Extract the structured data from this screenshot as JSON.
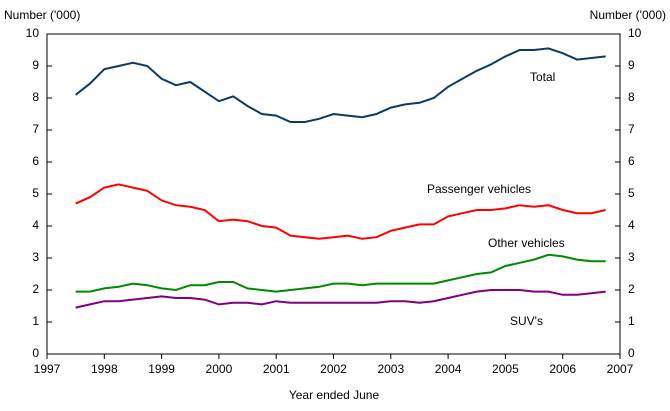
{
  "chart_data": {
    "type": "line",
    "ylabel": "Number ('000)",
    "y2label": "Number ('000)",
    "xlabel": "Year ended June",
    "x": [
      1997.5,
      1997.75,
      1998,
      1998.25,
      1998.5,
      1998.75,
      1999,
      1999.25,
      1999.5,
      1999.75,
      2000,
      2000.25,
      2000.5,
      2000.75,
      2001,
      2001.25,
      2001.5,
      2001.75,
      2002,
      2002.25,
      2002.5,
      2002.75,
      2003,
      2003.25,
      2003.5,
      2003.75,
      2004,
      2004.25,
      2004.5,
      2004.75,
      2005,
      2005.25,
      2005.5,
      2005.75,
      2006,
      2006.25,
      2006.5,
      2006.75
    ],
    "series": [
      {
        "name": "Total",
        "color": "#0b3a6a",
        "values": [
          8.1,
          8.45,
          8.9,
          9.0,
          9.1,
          9.0,
          8.6,
          8.4,
          8.5,
          8.2,
          7.9,
          8.05,
          7.75,
          7.5,
          7.45,
          7.25,
          7.25,
          7.35,
          7.5,
          7.45,
          7.4,
          7.5,
          7.7,
          7.8,
          7.85,
          8.0,
          8.35,
          8.6,
          8.85,
          9.05,
          9.3,
          9.5,
          9.5,
          9.55,
          9.4,
          9.2,
          9.25,
          9.3
        ]
      },
      {
        "name": "Passenger vehicles",
        "color": "#ff0000",
        "values": [
          4.7,
          4.9,
          5.2,
          5.3,
          5.2,
          5.1,
          4.8,
          4.65,
          4.6,
          4.5,
          4.15,
          4.2,
          4.15,
          4.0,
          3.95,
          3.7,
          3.65,
          3.6,
          3.65,
          3.7,
          3.6,
          3.65,
          3.85,
          3.95,
          4.05,
          4.05,
          4.3,
          4.4,
          4.5,
          4.5,
          4.55,
          4.65,
          4.6,
          4.65,
          4.5,
          4.4,
          4.4,
          4.5
        ]
      },
      {
        "name": "Other vehicles",
        "color": "#008a00",
        "values": [
          1.95,
          1.95,
          2.05,
          2.1,
          2.2,
          2.15,
          2.05,
          2.0,
          2.15,
          2.15,
          2.25,
          2.25,
          2.05,
          2.0,
          1.95,
          2.0,
          2.05,
          2.1,
          2.2,
          2.2,
          2.15,
          2.2,
          2.2,
          2.2,
          2.2,
          2.2,
          2.3,
          2.4,
          2.5,
          2.55,
          2.75,
          2.85,
          2.95,
          3.1,
          3.05,
          2.95,
          2.9,
          2.9
        ]
      },
      {
        "name": "SUV's",
        "color": "#800080",
        "values": [
          1.45,
          1.55,
          1.65,
          1.65,
          1.7,
          1.75,
          1.8,
          1.75,
          1.75,
          1.7,
          1.55,
          1.6,
          1.6,
          1.55,
          1.65,
          1.6,
          1.6,
          1.6,
          1.6,
          1.6,
          1.6,
          1.6,
          1.65,
          1.65,
          1.6,
          1.65,
          1.75,
          1.85,
          1.95,
          2.0,
          2.0,
          2.0,
          1.95,
          1.95,
          1.85,
          1.85,
          1.9,
          1.95
        ]
      }
    ],
    "xlim": [
      1997,
      2007
    ],
    "xticks": [
      1997,
      1998,
      1999,
      2000,
      2001,
      2002,
      2003,
      2004,
      2005,
      2006,
      2007
    ],
    "ylim": [
      0,
      10
    ],
    "yticks": [
      0,
      1,
      2,
      3,
      4,
      5,
      6,
      7,
      8,
      9,
      10
    ],
    "y2lim": [
      0,
      10
    ],
    "y2ticks": [
      0,
      1,
      2,
      3,
      4,
      5,
      6,
      7,
      8,
      9,
      10
    ]
  }
}
